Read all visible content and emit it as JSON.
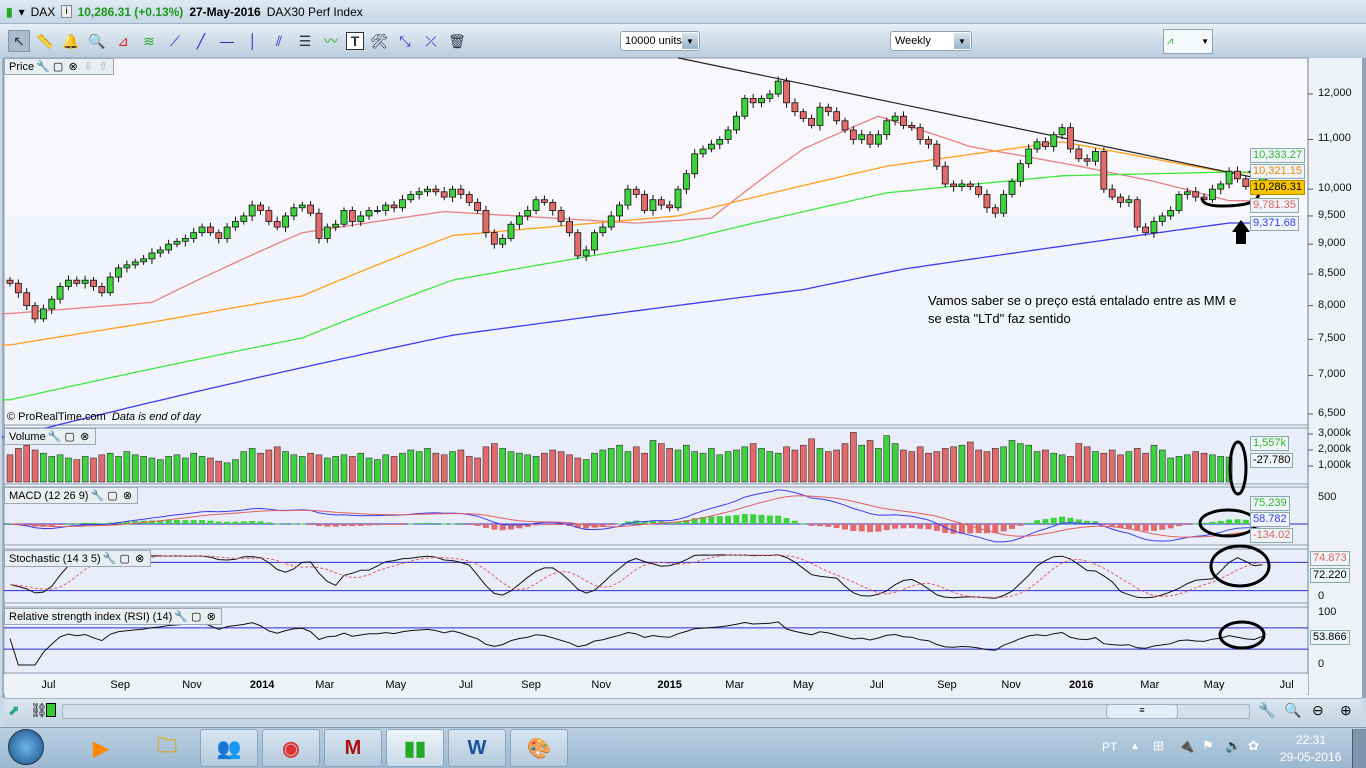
{
  "title": {
    "symbol": "DAX",
    "price": "10,286.31 (+0.13%)",
    "date": "27-May-2016",
    "name": "DAX30 Perf Index"
  },
  "toolbar": {
    "units": "10000 units",
    "timeframe": "Weekly"
  },
  "panels": {
    "price": "Price",
    "volume": "Volume",
    "macd": "MACD (12 26 9)",
    "stoch": "Stochastic (14 3 5)",
    "rsi": "Relative strength index (RSI) (14)"
  },
  "copyright": "© ProRealTime.com",
  "disclaimer": "Data is end of day",
  "annotation": {
    "line1": "Vamos saber se o preço está entalado entre as MM e",
    "line2": "se esta \"LTd\" faz sentido"
  },
  "tags": {
    "ma100": "10,333.27",
    "ma50": "10,321.15",
    "last": "10,286.31",
    "ma20": "9,781.35",
    "ma200": "9,371.68",
    "vol": "1,557k",
    "vol2": "-27.780",
    "macd_hist": "75.239",
    "macd": "58.782",
    "macd_sig": "-134.02",
    "stoch_k": "74.873",
    "stoch_d": "72.220",
    "rsi": "53.866"
  },
  "axes": {
    "price_ticks": [
      "12,000",
      "11,000",
      "10,000",
      "9,500",
      "9,000",
      "8,500",
      "8,000",
      "7,500",
      "7,000",
      "6,500"
    ],
    "price_tick_values": [
      12000,
      11000,
      10000,
      9500,
      9000,
      8500,
      8000,
      7500,
      7000,
      6500
    ],
    "vol_ticks": [
      "3,000k",
      "2,000k",
      "1,000k"
    ],
    "macd_ticks": [
      "500"
    ],
    "stoch_ticks": [
      "0"
    ],
    "rsi_ticks": [
      "100",
      "0"
    ]
  },
  "taskbar": {
    "lang": "PT",
    "time": "22:31",
    "date": "29-05-2016"
  },
  "colors": {
    "up": "#3fd23f",
    "down": "#e36a6a",
    "ma20": "#e88080",
    "ma50": "#ff9f1a",
    "ma100": "#3ee83e",
    "ma200": "#3b3bf0"
  },
  "chart_data": {
    "type": "candlestick",
    "title": "DAX30 Perf Index — Weekly",
    "x_labels": [
      {
        "t": "Jul",
        "i": 4.6
      },
      {
        "t": "Sep",
        "i": 13.2
      },
      {
        "t": "Nov",
        "i": 21.8
      },
      {
        "t": "2014",
        "i": 30.2
      },
      {
        "t": "Mar",
        "i": 37.7
      },
      {
        "t": "May",
        "i": 46.2
      },
      {
        "t": "Jul",
        "i": 54.6
      },
      {
        "t": "Sep",
        "i": 62.4
      },
      {
        "t": "Nov",
        "i": 70.8
      },
      {
        "t": "2015",
        "i": 79
      },
      {
        "t": "Mar",
        "i": 86.8
      },
      {
        "t": "May",
        "i": 95
      },
      {
        "t": "Jul",
        "i": 103.8
      },
      {
        "t": "Sep",
        "i": 112.2
      },
      {
        "t": "Nov",
        "i": 119.9
      },
      {
        "t": "2016",
        "i": 128.3
      },
      {
        "t": "Mar",
        "i": 136.5
      },
      {
        "t": "May",
        "i": 144.2
      },
      {
        "t": "Jul",
        "i": 152.9
      }
    ],
    "first_open": 8400,
    "closes": [
      8350,
      8200,
      8000,
      7800,
      7950,
      8100,
      8300,
      8400,
      8350,
      8400,
      8300,
      8200,
      8450,
      8600,
      8650,
      8700,
      8750,
      8850,
      8900,
      9000,
      9050,
      9100,
      9200,
      9300,
      9200,
      9100,
      9300,
      9400,
      9500,
      9700,
      9600,
      9400,
      9300,
      9500,
      9650,
      9700,
      9550,
      9100,
      9300,
      9350,
      9600,
      9400,
      9500,
      9600,
      9600,
      9700,
      9650,
      9800,
      9900,
      9950,
      10000,
      9950,
      9850,
      10000,
      9900,
      9750,
      9600,
      9200,
      9000,
      9100,
      9350,
      9500,
      9600,
      9800,
      9750,
      9600,
      9400,
      9200,
      8800,
      8900,
      9200,
      9300,
      9500,
      9700,
      10000,
      9900,
      9600,
      9800,
      9700,
      9650,
      10000,
      10300,
      10700,
      10800,
      10900,
      11000,
      11200,
      11500,
      11900,
      11800,
      11900,
      12000,
      12300,
      11800,
      11600,
      11450,
      11300,
      11700,
      11600,
      11400,
      11200,
      11000,
      11100,
      10900,
      11100,
      11400,
      11500,
      11300,
      11250,
      11000,
      10900,
      10450,
      10100,
      10050,
      10100,
      10050,
      9900,
      9650,
      9550,
      9900,
      10150,
      10500,
      10800,
      10950,
      10850,
      11100,
      11250,
      10800,
      10600,
      10550,
      10750,
      10000,
      9850,
      9750,
      9800,
      9300,
      9200,
      9400,
      9500,
      9600,
      9900,
      9950,
      9850,
      9800,
      10000,
      10100,
      10350,
      10200,
      10050,
      10000,
      10286.31
    ],
    "volume_k": [
      1700,
      2100,
      2300,
      2000,
      1800,
      1600,
      1700,
      1500,
      1400,
      1600,
      1500,
      1700,
      1800,
      1600,
      1900,
      1700,
      1600,
      1500,
      1400,
      1600,
      1700,
      1500,
      1800,
      1600,
      1500,
      1300,
      1200,
      1400,
      1900,
      2100,
      1800,
      2000,
      2200,
      1900,
      1700,
      1600,
      1800,
      1700,
      1500,
      1600,
      1700,
      1600,
      1800,
      1500,
      1400,
      1700,
      1600,
      1800,
      2000,
      1900,
      2100,
      1800,
      1700,
      1900,
      2000,
      1600,
      1500,
      2200,
      2400,
      2100,
      1900,
      1800,
      1700,
      1600,
      1800,
      2000,
      1900,
      1700,
      1500,
      1400,
      1800,
      2000,
      2100,
      2300,
      1900,
      2200,
      1800,
      2600,
      2400,
      2100,
      2000,
      2300,
      1900,
      1800,
      2100,
      1700,
      1900,
      2000,
      2200,
      2400,
      2100,
      1900,
      1800,
      2200,
      2000,
      2300,
      2700,
      2100,
      1900,
      2000,
      2400,
      3100,
      2300,
      2600,
      2100,
      2900,
      2400,
      2000,
      1900,
      2200,
      1800,
      1900,
      2100,
      2200,
      2300,
      2500,
      2000,
      1900,
      2100,
      2200,
      2600,
      2400,
      2300,
      1900,
      2000,
      1800,
      1700,
      1600,
      2400,
      2200,
      1900,
      1800,
      2000,
      1700,
      1900,
      2100,
      1800,
      2300,
      2000,
      1500,
      1600,
      1700,
      1900,
      1800,
      1700,
      1600,
      1557
    ],
    "moving_averages": [
      {
        "name": "MA short",
        "color": "#e88080",
        "anchors": [
          [
            0,
            7880
          ],
          [
            17,
            8050
          ],
          [
            35,
            9200
          ],
          [
            52,
            9580
          ],
          [
            75,
            9370
          ],
          [
            84,
            9460
          ],
          [
            95,
            10800
          ],
          [
            104,
            11500
          ],
          [
            115,
            10850
          ],
          [
            128,
            10450
          ],
          [
            137,
            10150
          ],
          [
            146,
            9781.35
          ]
        ]
      },
      {
        "name": "MA mid",
        "color": "#ff9f1a",
        "anchors": [
          [
            0,
            7420
          ],
          [
            17,
            7750
          ],
          [
            35,
            8150
          ],
          [
            53,
            9150
          ],
          [
            80,
            9500
          ],
          [
            105,
            10450
          ],
          [
            126,
            10950
          ],
          [
            140,
            10500
          ],
          [
            146,
            10321.15
          ]
        ]
      },
      {
        "name": "MA long",
        "color": "#3ee83e",
        "anchors": [
          [
            0,
            6680
          ],
          [
            35,
            7520
          ],
          [
            53,
            8400
          ],
          [
            80,
            9050
          ],
          [
            105,
            9930
          ],
          [
            126,
            10260
          ],
          [
            146,
            10333.27
          ]
        ]
      },
      {
        "name": "MA very long",
        "color": "#3b3bf0",
        "anchors": [
          [
            0,
            6220
          ],
          [
            53,
            7560
          ],
          [
            95,
            8250
          ],
          [
            107,
            8580
          ],
          [
            140,
            9250
          ],
          [
            146,
            9371.68
          ]
        ]
      }
    ],
    "trendline": [
      [
        80,
        12860
      ],
      [
        154.5,
        10040
      ]
    ],
    "indicators": {
      "macd": [
        12,
        26,
        9
      ],
      "stochastic": [
        14,
        3,
        5
      ],
      "rsi": 14
    },
    "scale": "log",
    "ylim": [
      6400,
      12800
    ]
  }
}
